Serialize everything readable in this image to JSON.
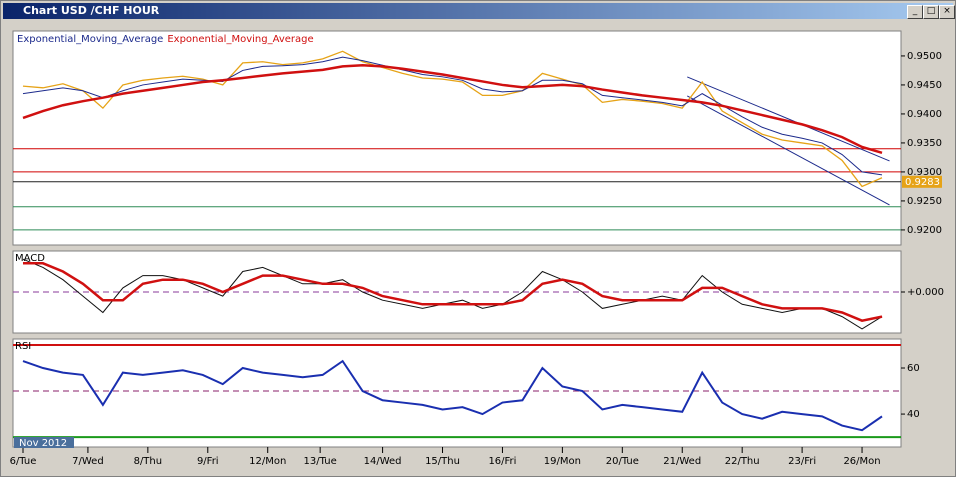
{
  "window_title": "Chart USD /CHF HOUR",
  "period_label": "Nov 2012",
  "chart_data": [
    {
      "type": "line",
      "legend": true,
      "x": [
        0,
        8,
        16,
        24,
        32,
        40,
        48,
        56,
        64,
        72,
        80,
        88,
        96,
        104,
        112,
        120,
        128,
        136,
        144,
        152,
        160,
        168,
        176,
        184,
        192,
        200,
        208,
        216,
        224,
        232,
        240,
        248,
        256,
        264,
        272,
        280,
        288,
        296,
        304,
        312,
        320,
        328,
        336,
        344
      ],
      "xlim": [
        -4,
        351.6
      ],
      "ylim": [
        0.9174,
        0.9543
      ],
      "yticks": [
        {
          "value": 0.95,
          "label": "0.9500"
        },
        {
          "value": 0.945,
          "label": "0.9450"
        },
        {
          "value": 0.94,
          "label": "0.9400"
        },
        {
          "value": 0.935,
          "label": "0.9350"
        },
        {
          "value": 0.93,
          "label": "0.9300"
        },
        {
          "value": 0.925,
          "label": "0.9250"
        },
        {
          "value": 0.92,
          "label": "0.9200"
        }
      ],
      "levels": [
        {
          "value": 0.934,
          "color": "#d00000"
        },
        {
          "value": 0.93,
          "color": "#d00000"
        },
        {
          "value": 0.9283,
          "color": "#202020"
        },
        {
          "value": 0.924,
          "color": "#2e8b57"
        },
        {
          "value": 0.92,
          "color": "#2e8b57"
        }
      ],
      "last_price": {
        "value": 0.9283,
        "label": "0.9283"
      },
      "trendlines": [
        {
          "x": [
            266,
            347
          ],
          "y": [
            0.94638,
            0.9319
          ],
          "color": "#1c2a8c"
        },
        {
          "x": [
            266,
            347
          ],
          "y": [
            0.9431,
            0.92431
          ],
          "color": "#1c2a8c"
        }
      ],
      "series": [
        {
          "name": "Price",
          "legend": false,
          "color": "#e6a317",
          "width": 1.3,
          "values": [
            0.9448,
            0.9445,
            0.9452,
            0.944,
            0.941,
            0.945,
            0.9458,
            0.9462,
            0.9465,
            0.946,
            0.945,
            0.9488,
            0.949,
            0.9485,
            0.9488,
            0.9495,
            0.9508,
            0.949,
            0.948,
            0.947,
            0.9462,
            0.946,
            0.9455,
            0.9432,
            0.9432,
            0.944,
            0.947,
            0.946,
            0.945,
            0.942,
            0.9425,
            0.9422,
            0.9418,
            0.941,
            0.9455,
            0.9405,
            0.9385,
            0.9365,
            0.9355,
            0.935,
            0.9345,
            0.932,
            0.9275,
            0.929
          ]
        },
        {
          "name": "Exponential_Moving_Average",
          "color": "#1c2a8c",
          "width": 1,
          "values": [
            0.9435,
            0.944,
            0.9445,
            0.944,
            0.9428,
            0.944,
            0.945,
            0.9455,
            0.946,
            0.9458,
            0.9456,
            0.9475,
            0.9482,
            0.9483,
            0.9485,
            0.949,
            0.9498,
            0.9492,
            0.9484,
            0.9476,
            0.9468,
            0.9464,
            0.9458,
            0.9443,
            0.9438,
            0.944,
            0.9458,
            0.9458,
            0.9452,
            0.9432,
            0.9428,
            0.9424,
            0.942,
            0.9414,
            0.9435,
            0.9415,
            0.9395,
            0.9377,
            0.9365,
            0.9358,
            0.935,
            0.933,
            0.93,
            0.9295
          ]
        },
        {
          "name": "Exponential_Moving_Average",
          "color": "#d01010",
          "width": 2.5,
          "values": [
            0.9393,
            0.9405,
            0.9415,
            0.9422,
            0.9428,
            0.9435,
            0.944,
            0.9445,
            0.945,
            0.9455,
            0.9458,
            0.9462,
            0.9466,
            0.947,
            0.9473,
            0.9476,
            0.9482,
            0.9484,
            0.9482,
            0.9478,
            0.9473,
            0.9468,
            0.9462,
            0.9456,
            0.945,
            0.9446,
            0.9448,
            0.945,
            0.9448,
            0.9442,
            0.9437,
            0.9432,
            0.9428,
            0.9424,
            0.942,
            0.9414,
            0.9406,
            0.9398,
            0.939,
            0.9382,
            0.9372,
            0.936,
            0.9343,
            0.9333
          ]
        }
      ]
    },
    {
      "type": "line",
      "title": "MACD",
      "x": [
        0,
        8,
        16,
        24,
        32,
        40,
        48,
        56,
        64,
        72,
        80,
        88,
        96,
        104,
        112,
        120,
        128,
        136,
        144,
        152,
        160,
        168,
        176,
        184,
        192,
        200,
        208,
        216,
        224,
        232,
        240,
        248,
        256,
        264,
        272,
        280,
        288,
        296,
        304,
        312,
        320,
        328,
        336,
        344
      ],
      "xlim": [
        -4,
        351.6
      ],
      "ylim": [
        -0.001,
        0.001
      ],
      "yticks": [
        {
          "value": 0,
          "label": "+0.000"
        }
      ],
      "levels": [
        {
          "value": 0,
          "color": "#8a3a9a",
          "dash": true
        }
      ],
      "series": [
        {
          "name": "MACD",
          "legend": false,
          "color": "#111111",
          "width": 1,
          "values": [
            0.0008,
            0.0006,
            0.0003,
            -0.0001,
            -0.0005,
            0.0001,
            0.0004,
            0.0004,
            0.0003,
            0.0001,
            -0.0001,
            0.0005,
            0.0006,
            0.0004,
            0.0002,
            0.0002,
            0.0003,
            0,
            -0.0002,
            -0.0003,
            -0.0004,
            -0.0003,
            -0.0002,
            -0.0004,
            -0.0003,
            0,
            0.0005,
            0.0003,
            0,
            -0.0004,
            -0.0003,
            -0.0002,
            -0.0001,
            -0.0002,
            0.0004,
            0,
            -0.0003,
            -0.0004,
            -0.0005,
            -0.0004,
            -0.0004,
            -0.0006,
            -0.0009,
            -0.0006
          ]
        },
        {
          "name": "Signal",
          "legend": false,
          "color": "#d01010",
          "width": 2.5,
          "values": [
            0.0007,
            0.0007,
            0.0005,
            0.0002,
            -0.0002,
            -0.0002,
            0.0002,
            0.0003,
            0.0003,
            0.0002,
            0,
            0.0002,
            0.0004,
            0.0004,
            0.0003,
            0.0002,
            0.0002,
            0.0001,
            -0.0001,
            -0.0002,
            -0.0003,
            -0.0003,
            -0.0003,
            -0.0003,
            -0.0003,
            -0.0002,
            0.0002,
            0.0003,
            0.0002,
            -0.0001,
            -0.0002,
            -0.0002,
            -0.0002,
            -0.0002,
            0.0001,
            0.0001,
            -0.0001,
            -0.0003,
            -0.0004,
            -0.0004,
            -0.0004,
            -0.0005,
            -0.0007,
            -0.0006
          ]
        }
      ]
    },
    {
      "type": "line",
      "title": "RSI",
      "x": [
        0,
        8,
        16,
        24,
        32,
        40,
        48,
        56,
        64,
        72,
        80,
        88,
        96,
        104,
        112,
        120,
        128,
        136,
        144,
        152,
        160,
        168,
        176,
        184,
        192,
        200,
        208,
        216,
        224,
        232,
        240,
        248,
        256,
        264,
        272,
        280,
        288,
        296,
        304,
        312,
        320,
        328,
        336,
        344
      ],
      "xlim": [
        -4,
        351.6
      ],
      "ylim": [
        25.7,
        72.6
      ],
      "yticks": [
        40,
        60
      ],
      "xticks": [
        {
          "value": 0,
          "label": "6/Tue"
        },
        {
          "value": 26,
          "label": "7/Wed"
        },
        {
          "value": 50,
          "label": "8/Thu"
        },
        {
          "value": 74,
          "label": "9/Fri"
        },
        {
          "value": 98,
          "label": "12/Mon"
        },
        {
          "value": 119,
          "label": "13/Tue"
        },
        {
          "value": 144,
          "label": "14/Wed"
        },
        {
          "value": 168,
          "label": "15/Thu"
        },
        {
          "value": 192,
          "label": "16/Fri"
        },
        {
          "value": 216,
          "label": "19/Mon"
        },
        {
          "value": 240,
          "label": "20/Tue"
        },
        {
          "value": 264,
          "label": "21/Wed"
        },
        {
          "value": 288,
          "label": "22/Thu"
        },
        {
          "value": 312,
          "label": "23/Fri"
        },
        {
          "value": 336,
          "label": "26/Mon"
        }
      ],
      "levels": [
        {
          "value": 70,
          "color": "#d01010",
          "width": 2
        },
        {
          "value": 50,
          "color": "#8a1f6a",
          "dash": true
        },
        {
          "value": 30,
          "color": "#1a9a1a",
          "width": 2
        }
      ],
      "series": [
        {
          "name": "RSI",
          "legend": false,
          "color": "#1a2fb0",
          "width": 2,
          "values": [
            63,
            60,
            58,
            57,
            44,
            58,
            57,
            58,
            59,
            57,
            53,
            60,
            58,
            57,
            56,
            57,
            63,
            50,
            46,
            45,
            44,
            42,
            43,
            40,
            45,
            46,
            60,
            52,
            50,
            42,
            44,
            43,
            42,
            41,
            58,
            45,
            40,
            38,
            41,
            40,
            39,
            35,
            33,
            39
          ]
        }
      ]
    }
  ]
}
